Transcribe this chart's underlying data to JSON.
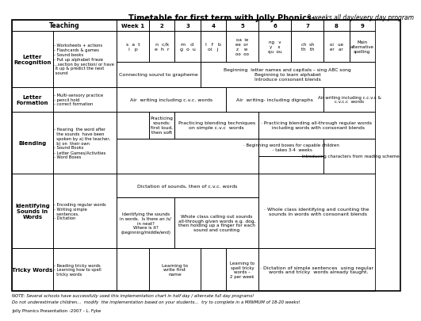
{
  "title_bold": "Timetable for first term with Jolly Phonics-",
  "title_italic": " 9 weeks all day/every day program",
  "col_headers": [
    "Teaching",
    "Week 1",
    "2",
    "3",
    "4",
    "5",
    "6",
    "7",
    "8",
    "9"
  ],
  "note_line1": "NOTE: Several schools have successfully used this implementation chart in half day / alternate full day programs!",
  "note_line2": "Do not underestimate children...  modify  the implementation based on your students...  try to complete in a MINIMUM of 18-20 weeks!",
  "footer": "Jolly Phonics Presentation -2007 - L. Fyke",
  "bg_color": "#ffffff"
}
